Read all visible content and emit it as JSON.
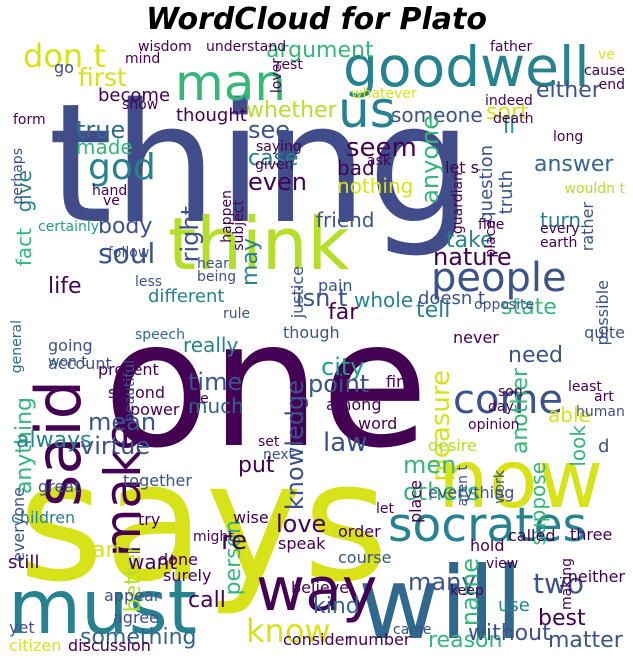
{
  "title": "WordCloud for Plato",
  "palette": {
    "purple": "#440154",
    "indigo": "#3b528b",
    "slate": "#404d8a",
    "blue": "#31688e",
    "teal": "#26828e",
    "sea": "#1f9e89",
    "green": "#35b779",
    "lime": "#b5de2b",
    "yellow": "#d7e219"
  },
  "words": [
    {
      "text": "thing",
      "color": "slate"
    },
    {
      "text": "one",
      "color": "purple"
    },
    {
      "text": "says",
      "color": "yellow"
    },
    {
      "text": "will",
      "color": "blue"
    },
    {
      "text": "now",
      "color": "yellow"
    },
    {
      "text": "think",
      "color": "lime"
    },
    {
      "text": "must",
      "color": "teal"
    },
    {
      "text": "said",
      "color": "purple"
    },
    {
      "text": "way",
      "color": "purple"
    },
    {
      "text": "goodwell",
      "color": "teal"
    },
    {
      "text": "socrates",
      "color": "teal"
    },
    {
      "text": "man",
      "color": "green"
    },
    {
      "text": "us",
      "color": "teal"
    },
    {
      "text": "make",
      "color": "purple"
    },
    {
      "text": "people",
      "color": "indigo"
    },
    {
      "text": "come",
      "color": "indigo"
    },
    {
      "text": "don t",
      "color": "yellow"
    },
    {
      "text": "god",
      "color": "teal"
    },
    {
      "text": "soul",
      "color": "indigo"
    },
    {
      "text": "know",
      "color": "yellow"
    },
    {
      "text": "something",
      "color": "blue"
    },
    {
      "text": "think",
      "color": "lime"
    },
    {
      "text": "first",
      "color": "yellow"
    },
    {
      "text": "true",
      "color": "blue"
    },
    {
      "text": "made",
      "color": "green"
    },
    {
      "text": "give",
      "color": "teal"
    },
    {
      "text": "fact",
      "color": "green"
    },
    {
      "text": "body",
      "color": "indigo"
    },
    {
      "text": "life",
      "color": "purple"
    },
    {
      "text": "different",
      "color": "teal"
    },
    {
      "text": "anything",
      "color": "green"
    },
    {
      "text": "always",
      "color": "teal"
    },
    {
      "text": "mean",
      "color": "indigo"
    },
    {
      "text": "virtue",
      "color": "indigo"
    },
    {
      "text": "better",
      "color": "lime"
    },
    {
      "text": "part",
      "color": "yellow"
    },
    {
      "text": "want",
      "color": "purple"
    },
    {
      "text": "call",
      "color": "purple"
    },
    {
      "text": "still",
      "color": "purple"
    },
    {
      "text": "right",
      "color": "indigo"
    },
    {
      "text": "see",
      "color": "indigo"
    },
    {
      "text": "case",
      "color": "teal"
    },
    {
      "text": "even",
      "color": "purple"
    },
    {
      "text": "may",
      "color": "teal"
    },
    {
      "text": "friend",
      "color": "indigo"
    },
    {
      "text": "take",
      "color": "teal"
    },
    {
      "text": "nature",
      "color": "purple"
    },
    {
      "text": "isn t",
      "color": "indigo"
    },
    {
      "text": "tell",
      "color": "teal"
    },
    {
      "text": "state",
      "color": "green"
    },
    {
      "text": "another",
      "color": "green"
    },
    {
      "text": "knowledge",
      "color": "indigo"
    },
    {
      "text": "really",
      "color": "teal"
    },
    {
      "text": "time",
      "color": "indigo"
    },
    {
      "text": "much",
      "color": "blue"
    },
    {
      "text": "city",
      "color": "sea"
    },
    {
      "text": "point",
      "color": "indigo"
    },
    {
      "text": "pleasure",
      "color": "yellow"
    },
    {
      "text": "law",
      "color": "indigo"
    },
    {
      "text": "men",
      "color": "green"
    },
    {
      "text": "others",
      "color": "green"
    },
    {
      "text": "love",
      "color": "purple"
    },
    {
      "text": "person",
      "color": "green"
    },
    {
      "text": "re",
      "color": "purple"
    },
    {
      "text": "many",
      "color": "indigo"
    },
    {
      "text": "name",
      "color": "green"
    },
    {
      "text": "two",
      "color": "indigo"
    },
    {
      "text": "best",
      "color": "purple"
    },
    {
      "text": "use",
      "color": "teal"
    },
    {
      "text": "kind",
      "color": "blue"
    },
    {
      "text": "reason",
      "color": "green"
    },
    {
      "text": "without",
      "color": "indigo"
    },
    {
      "text": "matter",
      "color": "indigo"
    },
    {
      "text": "need",
      "color": "indigo"
    },
    {
      "text": "look",
      "color": "green"
    },
    {
      "text": "whole",
      "color": "teal"
    },
    {
      "text": "doesn t",
      "color": "indigo"
    },
    {
      "text": "opposite",
      "color": "indigo"
    },
    {
      "text": "argument",
      "color": "green"
    },
    {
      "text": "someone",
      "color": "indigo"
    },
    {
      "text": "whether",
      "color": "lime"
    },
    {
      "text": "thought",
      "color": "purple"
    },
    {
      "text": "become",
      "color": "purple"
    },
    {
      "text": "either",
      "color": "indigo"
    },
    {
      "text": "sort",
      "color": "yellow"
    },
    {
      "text": "seem",
      "color": "purple"
    },
    {
      "text": "ll",
      "color": "sea"
    },
    {
      "text": "anyone",
      "color": "green"
    },
    {
      "text": "answer",
      "color": "blue"
    },
    {
      "text": "question",
      "color": "indigo"
    },
    {
      "text": "truth",
      "color": "indigo"
    },
    {
      "text": "turn",
      "color": "teal"
    },
    {
      "text": "rather",
      "color": "indigo"
    },
    {
      "text": "suppose",
      "color": "green"
    },
    {
      "text": "possible",
      "color": "indigo"
    },
    {
      "text": "quite",
      "color": "indigo"
    },
    {
      "text": "able",
      "color": "yellow"
    },
    {
      "text": "least",
      "color": "purple"
    },
    {
      "text": "human",
      "color": "indigo"
    },
    {
      "text": "d",
      "color": "indigo"
    },
    {
      "text": "work",
      "color": "indigo"
    },
    {
      "text": "aren t",
      "color": "indigo"
    },
    {
      "text": "three",
      "color": "purple"
    },
    {
      "text": "called",
      "color": "purple"
    },
    {
      "text": "neither",
      "color": "purple"
    },
    {
      "text": "hold",
      "color": "purple"
    },
    {
      "text": "view",
      "color": "purple"
    },
    {
      "text": "making",
      "color": "purple"
    },
    {
      "text": "keep",
      "color": "purple"
    },
    {
      "text": "came",
      "color": "indigo"
    },
    {
      "text": "course",
      "color": "indigo"
    },
    {
      "text": "order",
      "color": "purple"
    },
    {
      "text": "let",
      "color": "purple"
    },
    {
      "text": "wise",
      "color": "purple"
    },
    {
      "text": "speak",
      "color": "purple"
    },
    {
      "text": "believe",
      "color": "purple"
    },
    {
      "text": "consider",
      "color": "purple"
    },
    {
      "text": "number",
      "color": "purple"
    },
    {
      "text": "discussion",
      "color": "purple"
    },
    {
      "text": "citizen",
      "color": "yellow"
    },
    {
      "text": "yet",
      "color": "indigo"
    },
    {
      "text": "agree",
      "color": "indigo"
    },
    {
      "text": "appear",
      "color": "indigo"
    },
    {
      "text": "surely",
      "color": "purple"
    },
    {
      "text": "done",
      "color": "purple"
    },
    {
      "text": "might",
      "color": "purple"
    },
    {
      "text": "try",
      "color": "purple"
    },
    {
      "text": "children",
      "color": "teal"
    },
    {
      "text": "everyone",
      "color": "indigo"
    },
    {
      "text": "great",
      "color": "indigo"
    },
    {
      "text": "together",
      "color": "indigo"
    },
    {
      "text": "place",
      "color": "purple"
    },
    {
      "text": "everything",
      "color": "indigo"
    },
    {
      "text": "next",
      "color": "indigo"
    },
    {
      "text": "put",
      "color": "purple"
    },
    {
      "text": "set",
      "color": "purple"
    },
    {
      "text": "word",
      "color": "purple"
    },
    {
      "text": "desire",
      "color": "lime"
    },
    {
      "text": "among",
      "color": "purple"
    },
    {
      "text": "find",
      "color": "purple"
    },
    {
      "text": "never",
      "color": "purple"
    },
    {
      "text": "son",
      "color": "purple"
    },
    {
      "text": "day",
      "color": "purple"
    },
    {
      "text": "opinion",
      "color": "purple"
    },
    {
      "text": "art",
      "color": "purple"
    },
    {
      "text": "rule",
      "color": "indigo"
    },
    {
      "text": "though",
      "color": "indigo"
    },
    {
      "text": "live",
      "color": "purple"
    },
    {
      "text": "power",
      "color": "purple"
    },
    {
      "text": "second",
      "color": "purple"
    },
    {
      "text": "present",
      "color": "purple"
    },
    {
      "text": "beautiful",
      "color": "indigo"
    },
    {
      "text": "account",
      "color": "indigo"
    },
    {
      "text": "going",
      "color": "indigo"
    },
    {
      "text": "won t",
      "color": "indigo"
    },
    {
      "text": "general",
      "color": "blue"
    },
    {
      "text": "speech",
      "color": "blue"
    },
    {
      "text": "less",
      "color": "indigo"
    },
    {
      "text": "follow",
      "color": "indigo"
    },
    {
      "text": "hear",
      "color": "indigo"
    },
    {
      "text": "being",
      "color": "indigo"
    },
    {
      "text": "justice",
      "color": "indigo"
    },
    {
      "text": "pain",
      "color": "indigo"
    },
    {
      "text": "far",
      "color": "purple"
    },
    {
      "text": "bad",
      "color": "purple"
    },
    {
      "text": "nothing",
      "color": "yellow"
    },
    {
      "text": "subject",
      "color": "purple"
    },
    {
      "text": "happen",
      "color": "purple"
    },
    {
      "text": "ask",
      "color": "purple"
    },
    {
      "text": "given",
      "color": "purple"
    },
    {
      "text": "saying",
      "color": "purple"
    },
    {
      "text": "let s",
      "color": "purple"
    },
    {
      "text": "guardian",
      "color": "purple"
    },
    {
      "text": "fine",
      "color": "purple"
    },
    {
      "text": "death",
      "color": "purple"
    },
    {
      "text": "indeed",
      "color": "purple"
    },
    {
      "text": "long",
      "color": "purple"
    },
    {
      "text": "wouldn t",
      "color": "lime"
    },
    {
      "text": "place",
      "color": "purple"
    },
    {
      "text": "every",
      "color": "purple"
    },
    {
      "text": "earth",
      "color": "purple"
    },
    {
      "text": "wisdom",
      "color": "purple"
    },
    {
      "text": "understand",
      "color": "purple"
    },
    {
      "text": "mind",
      "color": "purple"
    },
    {
      "text": "lover",
      "color": "purple"
    },
    {
      "text": "rest",
      "color": "purple"
    },
    {
      "text": "whatever",
      "color": "yellow"
    },
    {
      "text": "father",
      "color": "purple"
    },
    {
      "text": "ve",
      "color": "yellow"
    },
    {
      "text": "cause",
      "color": "purple"
    },
    {
      "text": "end",
      "color": "purple"
    },
    {
      "text": "go",
      "color": "indigo"
    },
    {
      "text": "form",
      "color": "purple"
    },
    {
      "text": "show",
      "color": "purple"
    },
    {
      "text": "perhaps",
      "color": "indigo"
    },
    {
      "text": "hand",
      "color": "purple"
    },
    {
      "text": "ve",
      "color": "purple"
    },
    {
      "text": "certainly",
      "color": "sea"
    }
  ]
}
